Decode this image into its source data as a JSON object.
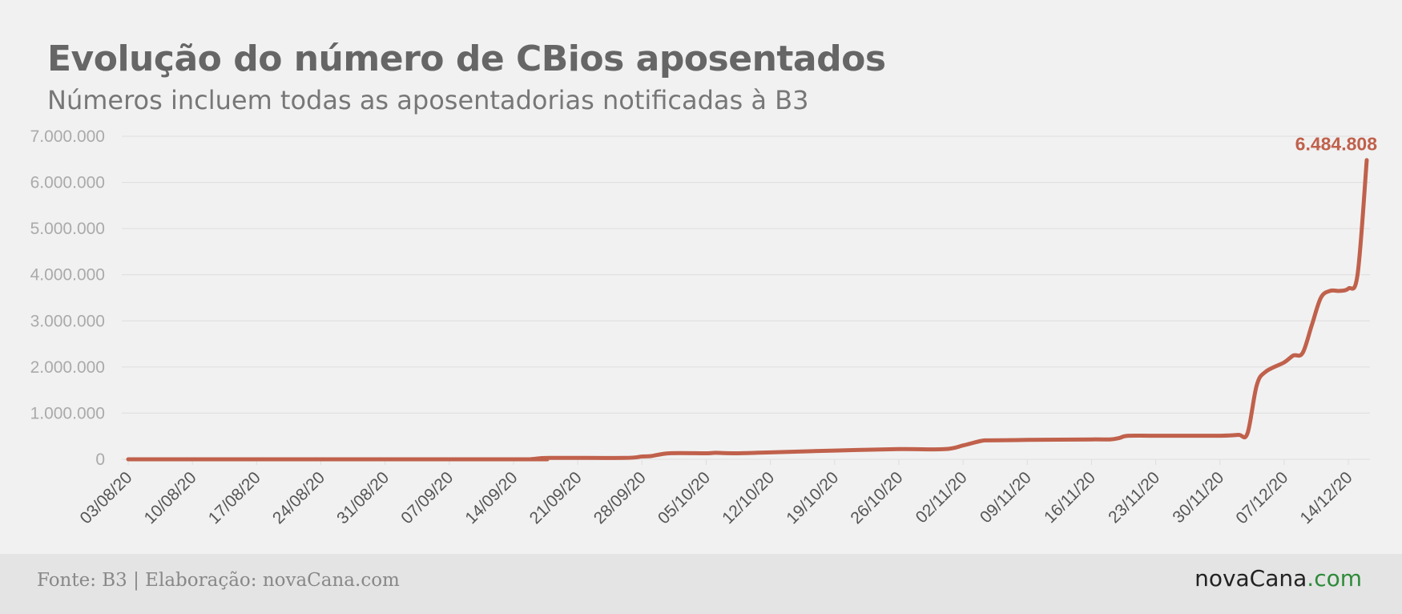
{
  "header": {
    "title": "Evolução do número de CBios aposentados",
    "subtitle": "Números incluem todas as aposentadorias notificadas à B3"
  },
  "footer": {
    "source": "Fonte: B3 | Elaboração: novaCana.com",
    "logo_main": "novaCana",
    "logo_tld": ".com"
  },
  "colors": {
    "line": "#c0614c",
    "grid": "#dedede",
    "axis_text": "#aaaaaa",
    "date_text": "#555555"
  },
  "chart_data": {
    "type": "line",
    "title": "Evolução do número de CBios aposentados",
    "subtitle": "Números incluem todas as aposentadorias notificadas à B3",
    "xlabel": "",
    "ylabel": "",
    "ylim": [
      0,
      7000000
    ],
    "yticks": [
      0,
      1000000,
      2000000,
      3000000,
      4000000,
      5000000,
      6000000,
      7000000
    ],
    "ytick_labels": [
      "0",
      "1.000.000",
      "2.000.000",
      "3.000.000",
      "4.000.000",
      "5.000.000",
      "6.000.000",
      "7.000.000"
    ],
    "xlim": [
      "2020-08-03",
      "2020-12-16"
    ],
    "xtick_dates": [
      "2020-08-03",
      "2020-08-10",
      "2020-08-17",
      "2020-08-24",
      "2020-08-31",
      "2020-09-07",
      "2020-09-14",
      "2020-09-21",
      "2020-09-28",
      "2020-10-05",
      "2020-10-12",
      "2020-10-19",
      "2020-10-26",
      "2020-11-02",
      "2020-11-09",
      "2020-11-16",
      "2020-11-23",
      "2020-11-30",
      "2020-12-07",
      "2020-12-14"
    ],
    "xtick_labels": [
      "03/08/20",
      "10/08/20",
      "17/08/20",
      "24/08/20",
      "31/08/20",
      "07/09/20",
      "14/09/20",
      "21/09/20",
      "28/09/20",
      "05/10/20",
      "12/10/20",
      "19/10/20",
      "26/10/20",
      "02/11/20",
      "09/11/20",
      "16/11/20",
      "23/11/20",
      "30/11/20",
      "07/12/20",
      "14/12/20"
    ],
    "grid": true,
    "legend": "none",
    "series": [
      {
        "x": [
          "2020-08-03",
          "2020-09-14",
          "2020-09-16",
          "2020-09-18",
          "2020-09-26",
          "2020-09-28",
          "2020-09-29",
          "2020-10-01",
          "2020-10-05",
          "2020-10-06",
          "2020-10-08",
          "2020-10-12",
          "2020-10-19",
          "2020-10-26",
          "2020-10-31",
          "2020-11-02",
          "2020-11-04",
          "2020-11-05",
          "2020-11-09",
          "2020-11-16",
          "2020-11-18",
          "2020-11-19",
          "2020-11-20",
          "2020-11-23",
          "2020-11-30",
          "2020-12-02",
          "2020-12-03",
          "2020-12-04",
          "2020-12-05",
          "2020-12-07",
          "2020-12-08",
          "2020-12-09",
          "2020-12-10",
          "2020-12-11",
          "2020-12-12",
          "2020-12-13",
          "2020-12-14",
          "2020-12-15",
          "2020-12-16"
        ],
        "y": [
          0,
          0,
          5000,
          30000,
          30000,
          60000,
          70000,
          130000,
          130000,
          140000,
          130000,
          150000,
          190000,
          220000,
          220000,
          300000,
          400000,
          410000,
          420000,
          430000,
          430000,
          460000,
          510000,
          510000,
          510000,
          530000,
          560000,
          1600000,
          1900000,
          2100000,
          2250000,
          2300000,
          2900000,
          3500000,
          3650000,
          3650000,
          3700000,
          4000000,
          6484808
        ]
      }
    ],
    "annotations": [
      {
        "text": "6.484.808",
        "x": "2020-12-16",
        "y": 6484808
      }
    ]
  }
}
